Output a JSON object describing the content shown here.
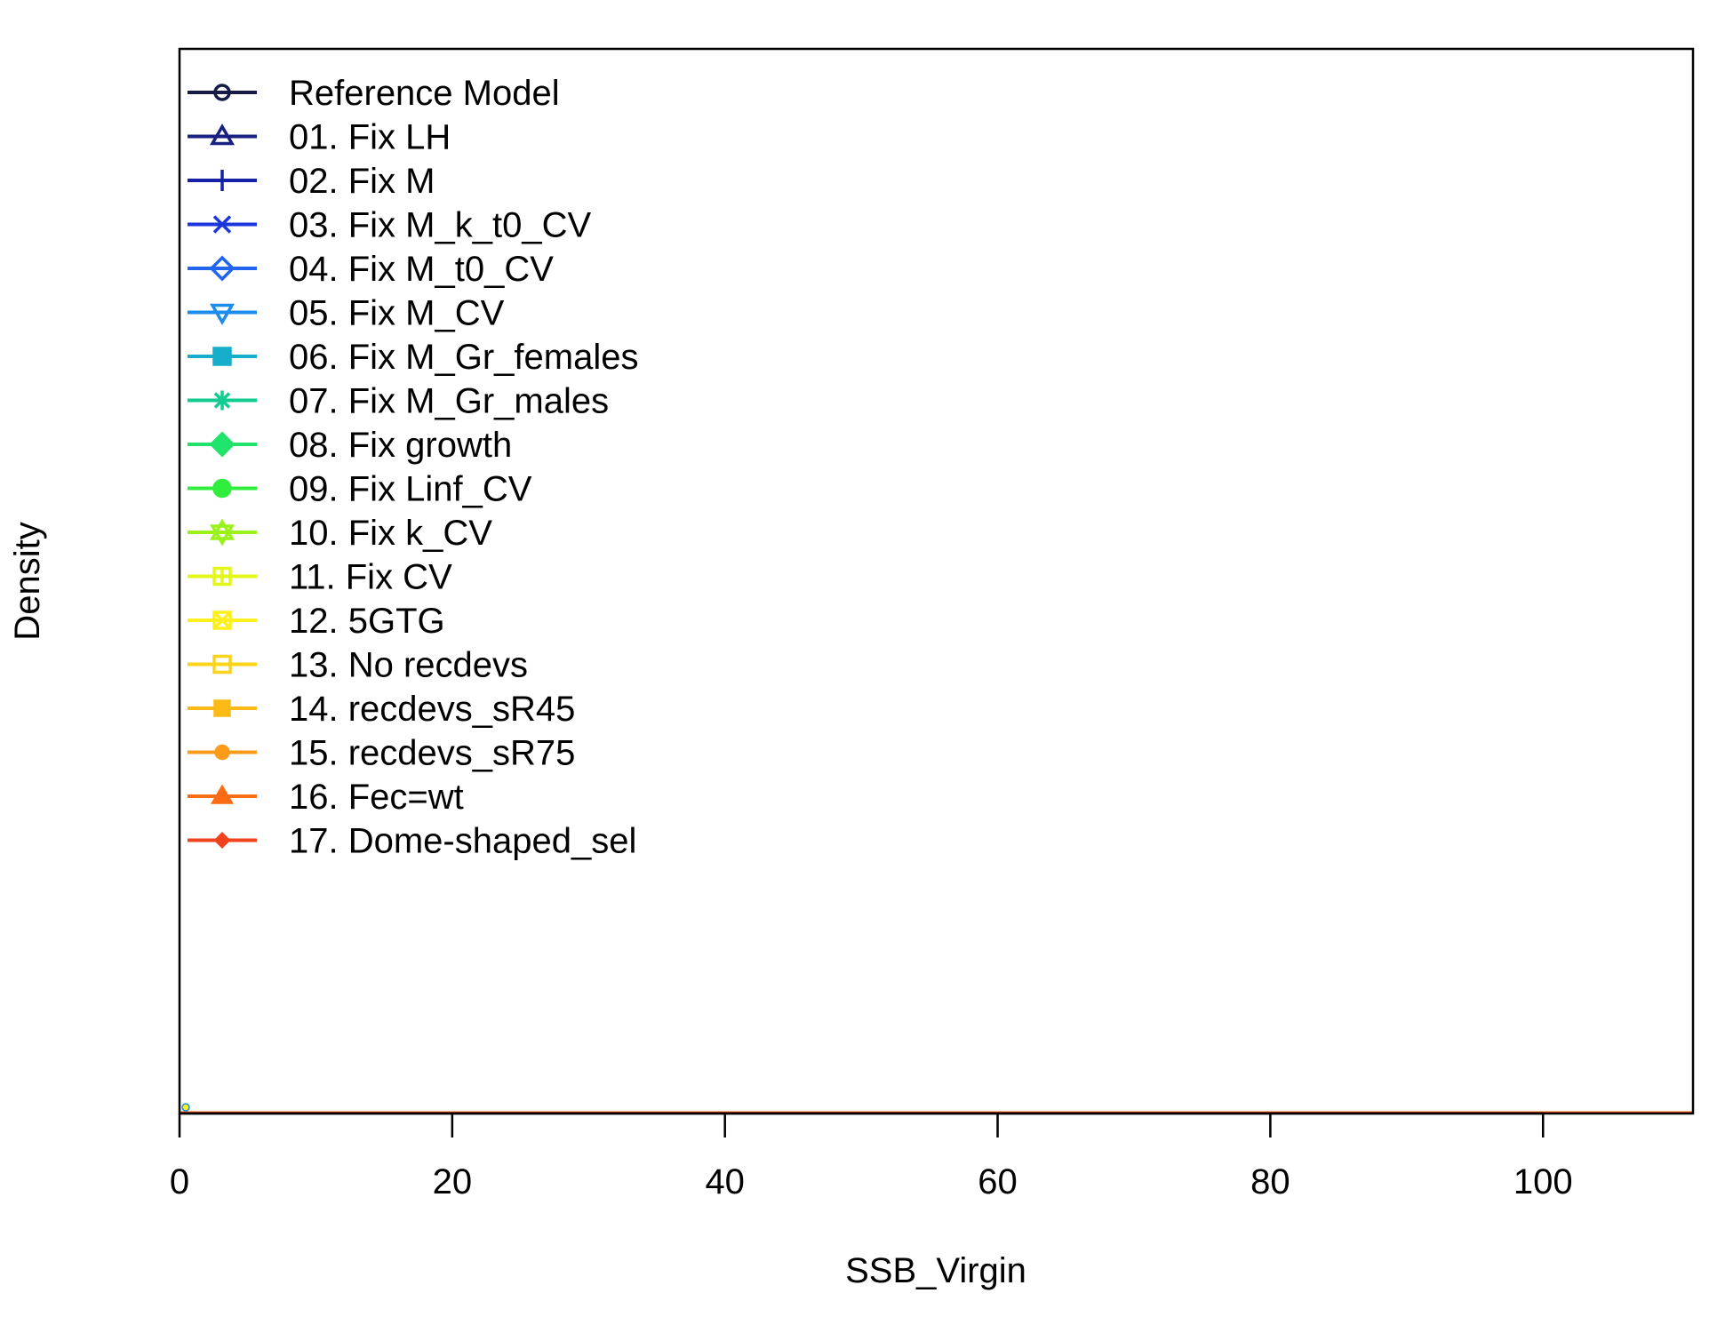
{
  "chart_data": {
    "type": "line",
    "xlabel": "SSB_Virgin",
    "ylabel": "Density",
    "xlim": [
      0,
      111
    ],
    "x_ticks": [
      0,
      20,
      40,
      60,
      80,
      100
    ],
    "x_tick_labels": [
      "0",
      "20",
      "40",
      "60",
      "80",
      "100"
    ],
    "y_ticks_shown": false,
    "grid": false,
    "legend_position": "top-left",
    "series": [
      {
        "name": "Reference Model",
        "color": "#151B45",
        "marker": "circle-open"
      },
      {
        "name": "01. Fix LH",
        "color": "#1A1F82",
        "marker": "triangle-open"
      },
      {
        "name": "02. Fix M",
        "color": "#1522A8",
        "marker": "plus"
      },
      {
        "name": "03. Fix M_k_t0_CV",
        "color": "#1C36DE",
        "marker": "cross"
      },
      {
        "name": "04. Fix M_t0_CV",
        "color": "#2264EE",
        "marker": "diamond-open"
      },
      {
        "name": "05. Fix M_CV",
        "color": "#1E8CEC",
        "marker": "triangle-down-open"
      },
      {
        "name": "06. Fix M_Gr_females",
        "color": "#16AECB",
        "marker": "square-cross"
      },
      {
        "name": "07. Fix M_Gr_males",
        "color": "#12CB91",
        "marker": "asterisk"
      },
      {
        "name": "08. Fix growth",
        "color": "#1FE36A",
        "marker": "diamond-plus"
      },
      {
        "name": "09. Fix Linf_CV",
        "color": "#31ED3D",
        "marker": "circle-plus"
      },
      {
        "name": "10. Fix k_CV",
        "color": "#9AF21A",
        "marker": "star-of-david"
      },
      {
        "name": "11. Fix CV",
        "color": "#E3F81A",
        "marker": "square-plus"
      },
      {
        "name": "12. 5GTG",
        "color": "#FBF01B",
        "marker": "square-x"
      },
      {
        "name": "13. No recdevs",
        "color": "#FBD41A",
        "marker": "square-open"
      },
      {
        "name": "14. recdevs_sR45",
        "color": "#FBBA15",
        "marker": "square"
      },
      {
        "name": "15. recdevs_sR75",
        "color": "#FC9A1A",
        "marker": "circle"
      },
      {
        "name": "16. Fec=wt",
        "color": "#FA6D15",
        "marker": "triangle"
      },
      {
        "name": "17. Dome-shaped_sel",
        "color": "#F0421D",
        "marker": "diamond"
      }
    ],
    "note_values": "All series appear as a near-zero density spike at x≈0; plotted flat at density 0 across the x-range."
  }
}
